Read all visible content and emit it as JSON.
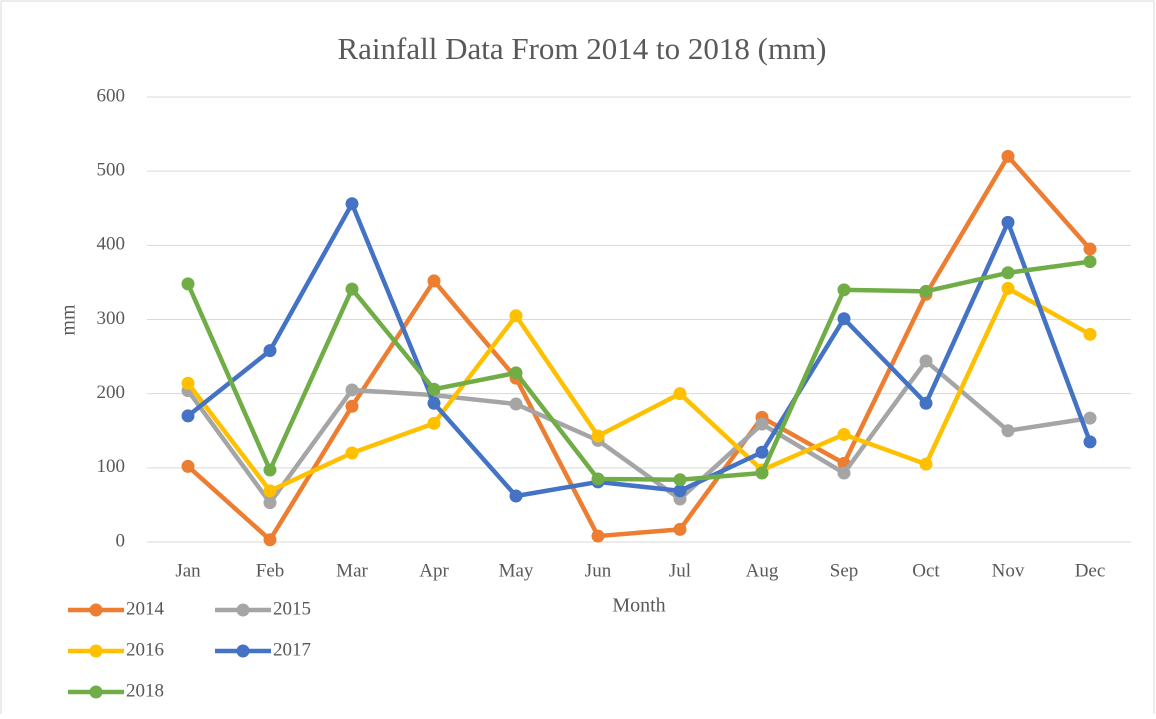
{
  "chart_data": {
    "type": "line",
    "title": "Rainfall Data From 2014 to 2018 (mm)",
    "x_label": "Month",
    "y_label": "mm",
    "categories": [
      "Jan",
      "Feb",
      "Mar",
      "Apr",
      "May",
      "Jun",
      "Jul",
      "Aug",
      "Sep",
      "Oct",
      "Nov",
      "Dec"
    ],
    "series": [
      {
        "name": "2014",
        "color": "#ed7d31",
        "values": [
          102,
          3,
          183,
          352,
          221,
          8,
          17,
          168,
          106,
          334,
          520,
          395
        ]
      },
      {
        "name": "2015",
        "color": "#a5a5a5",
        "values": [
          204,
          53,
          205,
          198,
          186,
          137,
          58,
          159,
          93,
          244,
          150,
          167
        ]
      },
      {
        "name": "2016",
        "color": "#ffc000",
        "values": [
          214,
          69,
          120,
          160,
          305,
          143,
          200,
          97,
          145,
          105,
          342,
          280
        ]
      },
      {
        "name": "2017",
        "color": "#4472c4",
        "values": [
          170,
          258,
          456,
          187,
          62,
          81,
          69,
          121,
          301,
          187,
          431,
          135
        ]
      },
      {
        "name": "2018",
        "color": "#70ad47",
        "values": [
          348,
          97,
          341,
          206,
          228,
          85,
          84,
          93,
          340,
          338,
          363,
          378
        ]
      }
    ],
    "ylim": [
      0,
      600
    ],
    "yticks": [
      0,
      100,
      200,
      300,
      400,
      500,
      600
    ],
    "grid": true,
    "legend": "bottom-left"
  }
}
